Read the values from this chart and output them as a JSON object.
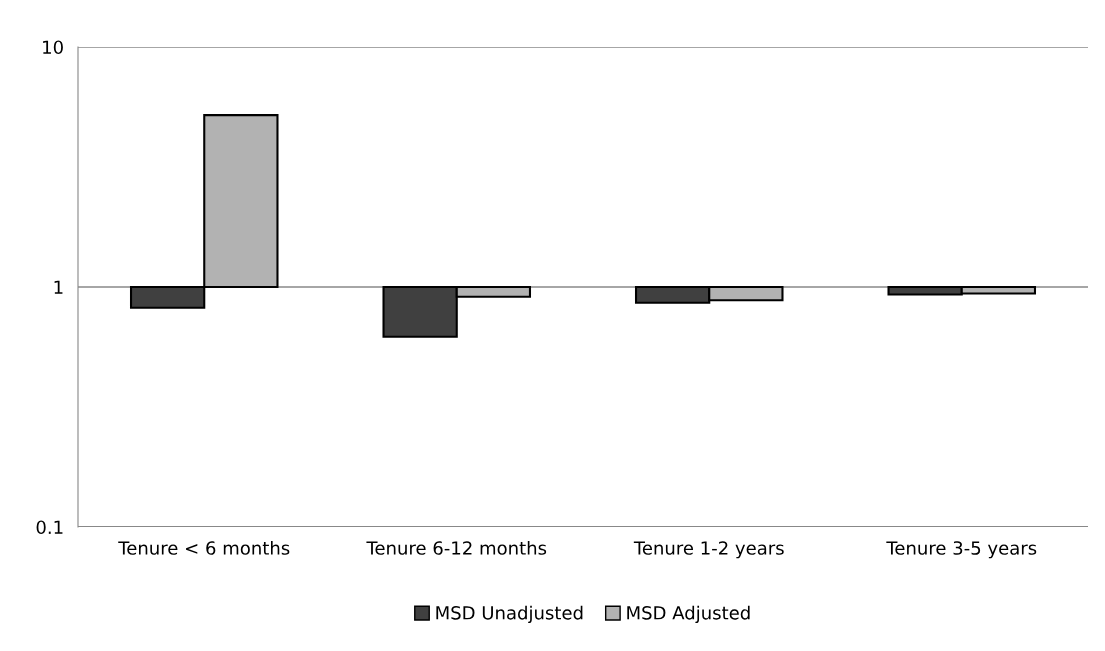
{
  "chart_data": {
    "type": "bar",
    "categories": [
      "Tenure < 6 months",
      "Tenure 6-12 months",
      "Tenure 1-2 years",
      "Tenure 3-5 years"
    ],
    "series": [
      {
        "name": "MSD Unadjusted",
        "color": "#404040",
        "values": [
          -0.18,
          -0.38,
          -0.14,
          -0.07
        ],
        "base": [
          1,
          1,
          1,
          1
        ]
      },
      {
        "name": "MSD Adjusted",
        "color": "#b2b2b2",
        "values": [
          4.2,
          -0.09,
          -0.12,
          -0.06
        ],
        "base": [
          1,
          1,
          1,
          1
        ]
      }
    ],
    "log": true,
    "ylim": [
      0.1,
      10
    ],
    "yticks": [
      0.1,
      1,
      10
    ],
    "grid": "y",
    "legend": "bottom"
  }
}
